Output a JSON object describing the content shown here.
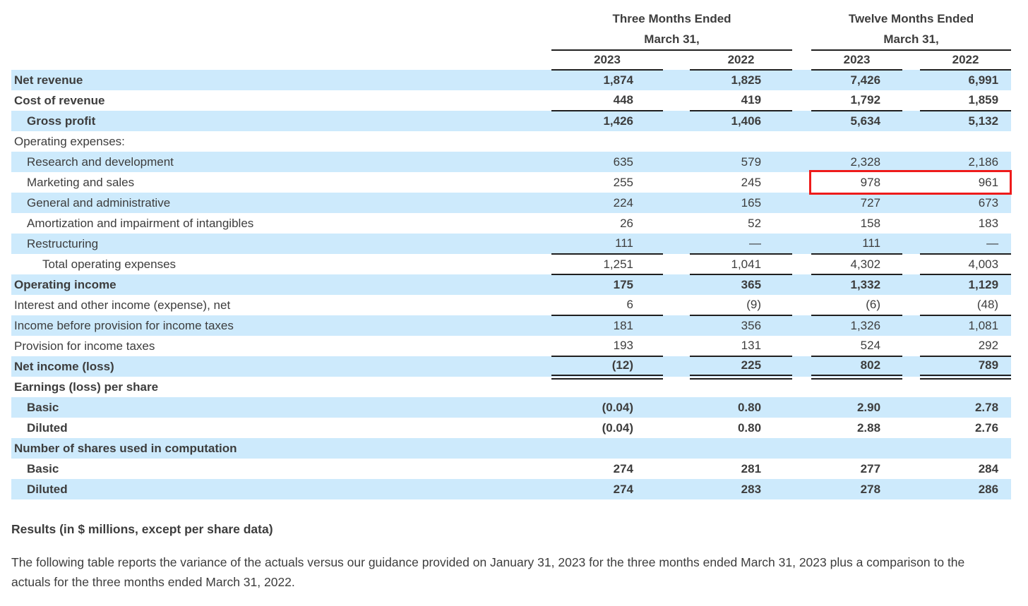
{
  "colors": {
    "row_highlight": "#cdeafc",
    "callout_red": "#ee1b1b",
    "text": "#3d3d3d",
    "rule": "#1f1f1f",
    "background": "#ffffff"
  },
  "table": {
    "col_groups": [
      {
        "line1": "Three Months Ended",
        "line2": "March 31,",
        "years": [
          "2023",
          "2022"
        ]
      },
      {
        "line1": "Twelve Months Ended",
        "line2": "March 31,",
        "years": [
          "2023",
          "2022"
        ]
      }
    ],
    "rows": [
      {
        "label": "Net revenue",
        "values": [
          "1,874",
          "1,825",
          "7,426",
          "6,991"
        ],
        "bold": true,
        "shaded": true,
        "indent": 0,
        "rule": "none"
      },
      {
        "label": "Cost of revenue",
        "values": [
          "448",
          "419",
          "1,792",
          "1,859"
        ],
        "bold": true,
        "shaded": false,
        "indent": 0,
        "rule": "single"
      },
      {
        "label": "Gross profit",
        "values": [
          "1,426",
          "1,406",
          "5,634",
          "5,132"
        ],
        "bold": true,
        "shaded": true,
        "indent": 1,
        "rule": "none"
      },
      {
        "label": "Operating expenses:",
        "values": [
          "",
          "",
          "",
          ""
        ],
        "bold": false,
        "shaded": false,
        "indent": 0,
        "rule": "none"
      },
      {
        "label": "Research and development",
        "values": [
          "635",
          "579",
          "2,328",
          "2,186"
        ],
        "bold": false,
        "shaded": true,
        "indent": 1,
        "rule": "none"
      },
      {
        "label": "Marketing and sales",
        "values": [
          "255",
          "245",
          "978",
          "961"
        ],
        "bold": false,
        "shaded": false,
        "indent": 1,
        "rule": "none",
        "highlight_cols": [
          2,
          3
        ]
      },
      {
        "label": "General and administrative",
        "values": [
          "224",
          "165",
          "727",
          "673"
        ],
        "bold": false,
        "shaded": true,
        "indent": 1,
        "rule": "none"
      },
      {
        "label": "Amortization and impairment of intangibles",
        "values": [
          "26",
          "52",
          "158",
          "183"
        ],
        "bold": false,
        "shaded": false,
        "indent": 1,
        "rule": "none"
      },
      {
        "label": "Restructuring",
        "values": [
          "111",
          "—",
          "111",
          "—"
        ],
        "bold": false,
        "shaded": true,
        "indent": 1,
        "rule": "single"
      },
      {
        "label": "Total operating expenses",
        "values": [
          "1,251",
          "1,041",
          "4,302",
          "4,003"
        ],
        "bold": false,
        "shaded": false,
        "indent": 2,
        "rule": "single"
      },
      {
        "label": "Operating income",
        "values": [
          "175",
          "365",
          "1,332",
          "1,129"
        ],
        "bold": true,
        "shaded": true,
        "indent": 0,
        "rule": "none"
      },
      {
        "label": "Interest and other income (expense), net",
        "values": [
          "6",
          "(9)",
          "(6)",
          "(48)"
        ],
        "bold": false,
        "shaded": false,
        "indent": 0,
        "rule": "single"
      },
      {
        "label": "Income before provision for income taxes",
        "values": [
          "181",
          "356",
          "1,326",
          "1,081"
        ],
        "bold": false,
        "shaded": true,
        "indent": 0,
        "rule": "none"
      },
      {
        "label": "Provision for income taxes",
        "values": [
          "193",
          "131",
          "524",
          "292"
        ],
        "bold": false,
        "shaded": false,
        "indent": 0,
        "rule": "single"
      },
      {
        "label": "Net income (loss)",
        "values": [
          "(12)",
          "225",
          "802",
          "789"
        ],
        "bold": true,
        "shaded": true,
        "indent": 0,
        "rule": "double"
      },
      {
        "label": "Earnings (loss) per share",
        "values": [
          "",
          "",
          "",
          ""
        ],
        "bold": true,
        "shaded": false,
        "indent": 0,
        "rule": "none"
      },
      {
        "label": "Basic",
        "values": [
          "(0.04)",
          "0.80",
          "2.90",
          "2.78"
        ],
        "bold": true,
        "shaded": true,
        "indent": 1,
        "rule": "none"
      },
      {
        "label": "Diluted",
        "values": [
          "(0.04)",
          "0.80",
          "2.88",
          "2.76"
        ],
        "bold": true,
        "shaded": false,
        "indent": 1,
        "rule": "none"
      },
      {
        "label": "Number of shares used in computation",
        "values": [
          "",
          "",
          "",
          ""
        ],
        "bold": true,
        "shaded": true,
        "indent": 0,
        "rule": "none"
      },
      {
        "label": "Basic",
        "values": [
          "274",
          "281",
          "277",
          "284"
        ],
        "bold": true,
        "shaded": false,
        "indent": 1,
        "rule": "none"
      },
      {
        "label": "Diluted",
        "values": [
          "274",
          "283",
          "278",
          "286"
        ],
        "bold": true,
        "shaded": true,
        "indent": 1,
        "rule": "none"
      }
    ],
    "callout": {
      "row": "Marketing and sales",
      "highlighted_values": [
        "978",
        "961"
      ]
    }
  },
  "caption": "Results (in $ millions, except per share data)",
  "description": "The following table reports the variance of the actuals versus our guidance provided on January 31, 2023 for the three months ended March 31, 2023 plus a comparison to the actuals for the three months ended March 31, 2022."
}
